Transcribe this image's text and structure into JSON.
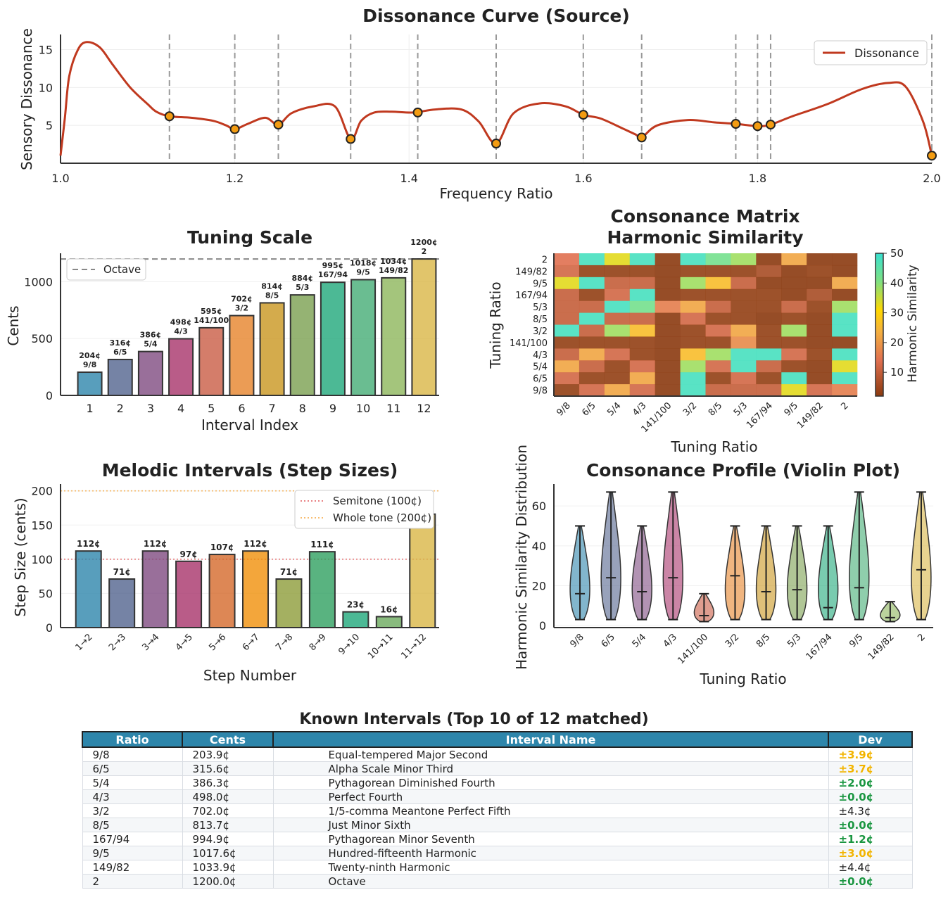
{
  "chart_data": [
    {
      "type": "line",
      "title": "Dissonance Curve (Source)",
      "xlabel": "Frequency Ratio",
      "ylabel": "Sensory Dissonance",
      "xlim": [
        1.0,
        2.0
      ],
      "ylim": [
        0,
        17
      ],
      "xticks": [
        "1.0",
        "1.2",
        "1.4",
        "1.6",
        "1.8",
        "2.0"
      ],
      "yticks": [
        "5",
        "10",
        "15"
      ],
      "legend": "top-right",
      "series": [
        {
          "name": "Dissonance",
          "color": "#c0391f",
          "x": [
            1.0,
            1.005,
            1.01,
            1.02,
            1.03,
            1.045,
            1.06,
            1.08,
            1.1,
            1.11,
            1.125,
            1.15,
            1.175,
            1.19,
            1.2,
            1.215,
            1.235,
            1.25,
            1.265,
            1.29,
            1.315,
            1.333,
            1.345,
            1.36,
            1.38,
            1.405,
            1.43,
            1.46,
            1.48,
            1.5,
            1.52,
            1.55,
            1.58,
            1.6,
            1.62,
            1.645,
            1.66,
            1.667,
            1.685,
            1.72,
            1.75,
            1.775,
            1.8,
            1.815,
            1.84,
            1.88,
            1.92,
            1.95,
            1.97,
            1.99,
            2.0
          ],
          "y": [
            1.0,
            6.0,
            11.5,
            15.0,
            16.0,
            15.3,
            13.0,
            10.0,
            7.8,
            6.8,
            6.2,
            6.0,
            5.6,
            5.0,
            4.5,
            5.2,
            6.0,
            5.1,
            6.6,
            7.5,
            7.5,
            3.2,
            5.6,
            6.7,
            6.8,
            6.7,
            7.1,
            7.1,
            5.5,
            2.6,
            6.6,
            7.9,
            7.5,
            6.4,
            5.9,
            4.6,
            3.8,
            3.4,
            5.0,
            5.7,
            5.4,
            5.2,
            4.9,
            5.1,
            6.2,
            7.8,
            9.8,
            10.6,
            10.1,
            5.5,
            1.0
          ]
        }
      ],
      "markers": {
        "x": [
          1.125,
          1.2,
          1.25,
          1.333,
          1.41,
          1.5,
          1.6,
          1.667,
          1.775,
          1.8,
          1.815,
          2.0
        ],
        "y": [
          6.2,
          4.5,
          5.1,
          3.2,
          6.7,
          2.6,
          6.4,
          3.4,
          5.2,
          4.9,
          5.1,
          1.0
        ]
      }
    },
    {
      "type": "bar",
      "title": "Tuning Scale",
      "xlabel": "Interval Index",
      "ylabel": "Cents",
      "ylim": [
        0,
        1250
      ],
      "yticks": [
        "0",
        "500",
        "1000"
      ],
      "legend": "top-left",
      "reference_line": {
        "name": "Octave",
        "value": 1200
      },
      "categories": [
        "1",
        "2",
        "3",
        "4",
        "5",
        "6",
        "7",
        "8",
        "9",
        "10",
        "11",
        "12"
      ],
      "values": [
        204,
        316,
        386,
        498,
        595,
        702,
        814,
        884,
        995,
        1018,
        1034,
        1200
      ],
      "labels_cents": [
        "204¢",
        "316¢",
        "386¢",
        "498¢",
        "595¢",
        "702¢",
        "814¢",
        "884¢",
        "995¢",
        "1018¢",
        "1034¢",
        "1200¢"
      ],
      "labels_ratio": [
        "9/8",
        "6/5",
        "5/4",
        "4/3",
        "141/100",
        "3/2",
        "8/5",
        "5/3",
        "167/94",
        "9/5",
        "149/82",
        "2"
      ],
      "colors": [
        "#2e86ab",
        "#53648e",
        "#7f4b81",
        "#a8336a",
        "#c95c45",
        "#e6832b",
        "#c9961f",
        "#7ba050",
        "#1fa87a",
        "#45ad75",
        "#8db65b",
        "#d9b646"
      ]
    },
    {
      "type": "heatmap",
      "title": "Consonance Matrix\nHarmonic Similarity",
      "xlabel": "Tuning Ratio",
      "ylabel": "Tuning Ratio",
      "colorbar_label": "Harmonic Similarity",
      "colorbar_ticks": [
        "10",
        "20",
        "30",
        "40",
        "50"
      ],
      "vmin": 2,
      "vmax": 50,
      "x_labels": [
        "9/8",
        "6/5",
        "5/4",
        "4/3",
        "141/100",
        "3/2",
        "8/5",
        "5/3",
        "167/94",
        "9/5",
        "149/82",
        "2"
      ],
      "y_labels_top_to_bottom": [
        "2",
        "149/82",
        "9/5",
        "167/94",
        "5/3",
        "8/5",
        "3/2",
        "141/100",
        "4/3",
        "5/4",
        "6/5",
        "9/8"
      ],
      "matrix_top_to_bottom": [
        [
          14,
          48,
          33,
          48,
          2,
          48,
          42,
          38,
          2,
          22,
          2,
          2
        ],
        [
          12,
          3,
          3,
          3,
          2,
          3,
          3,
          3,
          6,
          2,
          3,
          2
        ],
        [
          33,
          48,
          10,
          10,
          2,
          38,
          26,
          10,
          2,
          2,
          2,
          22
        ],
        [
          10,
          3,
          12,
          48,
          2,
          3,
          3,
          3,
          3,
          2,
          6,
          2
        ],
        [
          10,
          10,
          48,
          42,
          16,
          22,
          10,
          3,
          3,
          10,
          3,
          38
        ],
        [
          10,
          48,
          10,
          10,
          2,
          12,
          3,
          3,
          2,
          3,
          2,
          48
        ],
        [
          48,
          10,
          38,
          26,
          2,
          3,
          12,
          22,
          3,
          38,
          2,
          48
        ],
        [
          3,
          3,
          3,
          3,
          2,
          3,
          3,
          18,
          3,
          3,
          2,
          2
        ],
        [
          10,
          22,
          12,
          3,
          2,
          26,
          38,
          48,
          48,
          12,
          3,
          48
        ],
        [
          22,
          10,
          3,
          12,
          2,
          38,
          12,
          48,
          10,
          3,
          2,
          33
        ],
        [
          12,
          3,
          3,
          22,
          2,
          48,
          3,
          12,
          3,
          48,
          2,
          48
        ],
        [
          3,
          12,
          22,
          12,
          2,
          48,
          10,
          10,
          10,
          33,
          12,
          16
        ]
      ]
    },
    {
      "type": "bar",
      "title": "Melodic Intervals (Step Sizes)",
      "xlabel": "Step Number",
      "ylabel": "Step Size (cents)",
      "ylim": [
        0,
        210
      ],
      "yticks": [
        "0",
        "50",
        "100",
        "150",
        "200"
      ],
      "legend": "top-right",
      "reference_lines": [
        {
          "name": "Semitone (100¢)",
          "value": 100,
          "color": "#e15759"
        },
        {
          "name": "Whole tone (200¢)",
          "value": 200,
          "color": "#f5a742"
        }
      ],
      "categories": [
        "1→2",
        "2→3",
        "3→4",
        "4→5",
        "5→6",
        "6→7",
        "7→8",
        "8→9",
        "9→10",
        "10→11",
        "11→12"
      ],
      "values": [
        112,
        71,
        112,
        97,
        107,
        112,
        71,
        111,
        23,
        16,
        166
      ],
      "labels": [
        "112¢",
        "71¢",
        "112¢",
        "97¢",
        "107¢",
        "112¢",
        "71¢",
        "111¢",
        "23¢",
        "16¢",
        ""
      ],
      "colors": [
        "#2e86ab",
        "#53648e",
        "#7f4b81",
        "#a8336a",
        "#d4692b",
        "#f0900a",
        "#8d9c3a",
        "#2fa060",
        "#1fa87a",
        "#6caa5e",
        "#d9b646"
      ]
    },
    {
      "type": "violin",
      "title": "Consonance Profile (Violin Plot)",
      "xlabel": "Tuning Ratio",
      "ylabel": "Harmonic Similarity Distribution",
      "ylim": [
        -1,
        71
      ],
      "yticks": [
        "0",
        "20",
        "40",
        "60"
      ],
      "categories": [
        "9/8",
        "6/5",
        "5/4",
        "4/3",
        "141/100",
        "3/2",
        "8/5",
        "5/3",
        "167/94",
        "9/5",
        "149/82",
        "2"
      ],
      "min": [
        3,
        3,
        3,
        3,
        2,
        3,
        3,
        3,
        3,
        3,
        2,
        3
      ],
      "max": [
        50,
        67,
        50,
        67,
        16,
        50,
        50,
        50,
        50,
        67,
        12,
        67
      ],
      "mean": [
        16,
        24,
        17,
        24,
        5,
        25,
        17,
        18,
        9,
        19,
        4,
        28
      ],
      "colors": [
        "#2e86ab",
        "#53648e",
        "#7f4b81",
        "#a8336a",
        "#c95c45",
        "#e6832b",
        "#c9961f",
        "#7ba050",
        "#1fa87a",
        "#45ad75",
        "#8db65b",
        "#d9b646"
      ]
    }
  ],
  "table": {
    "title": "Known Intervals (Top 10 of 12 matched)",
    "headers": [
      "Ratio",
      "Cents",
      "Interval Name",
      "Dev"
    ],
    "rows": [
      {
        "ratio": "9/8",
        "cents": "203.9¢",
        "name": "Equal-tempered Major Second",
        "dev": "±3.9¢",
        "dev_color": "yellow"
      },
      {
        "ratio": "6/5",
        "cents": "315.6¢",
        "name": "Alpha Scale Minor Third",
        "dev": "±3.7¢",
        "dev_color": "yellow"
      },
      {
        "ratio": "5/4",
        "cents": "386.3¢",
        "name": "Pythagorean Diminished Fourth",
        "dev": "±2.0¢",
        "dev_color": "green"
      },
      {
        "ratio": "4/3",
        "cents": "498.0¢",
        "name": "Perfect Fourth",
        "dev": "±0.0¢",
        "dev_color": "green"
      },
      {
        "ratio": "3/2",
        "cents": "702.0¢",
        "name": "1/5-comma Meantone Perfect Fifth",
        "dev": "±4.3¢",
        "dev_color": "plain"
      },
      {
        "ratio": "8/5",
        "cents": "813.7¢",
        "name": "Just Minor Sixth",
        "dev": "±0.0¢",
        "dev_color": "green"
      },
      {
        "ratio": "167/94",
        "cents": "994.9¢",
        "name": "Pythagorean Minor Seventh",
        "dev": "±1.2¢",
        "dev_color": "green"
      },
      {
        "ratio": "9/5",
        "cents": "1017.6¢",
        "name": "Hundred-fifteenth Harmonic",
        "dev": "±3.0¢",
        "dev_color": "yellow"
      },
      {
        "ratio": "149/82",
        "cents": "1033.9¢",
        "name": "Twenty-ninth Harmonic",
        "dev": "±4.4¢",
        "dev_color": "plain"
      },
      {
        "ratio": "2",
        "cents": "1200.0¢",
        "name": "Octave",
        "dev": "±0.0¢",
        "dev_color": "green"
      }
    ]
  }
}
